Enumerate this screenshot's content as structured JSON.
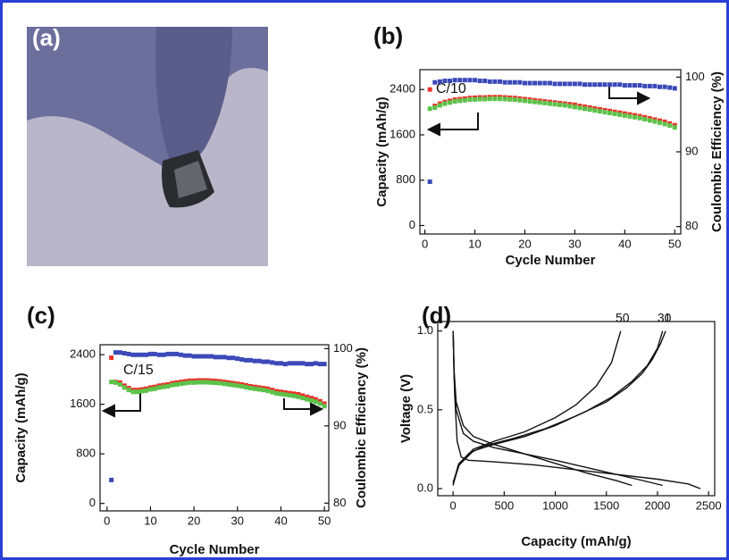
{
  "photo_panel": {
    "label": "(a)"
  },
  "chart_data": [
    {
      "type": "scatter",
      "title": "(b)",
      "xlabel": "Cycle Number",
      "ylabel": "Capacity (mAh/g)",
      "y2label": "Coulombic Efficiency (%)",
      "annotations": [
        "C/10"
      ],
      "x": [
        1,
        2,
        3,
        4,
        5,
        6,
        7,
        8,
        9,
        10,
        11,
        12,
        13,
        14,
        15,
        16,
        17,
        18,
        19,
        20,
        21,
        22,
        23,
        24,
        25,
        26,
        27,
        28,
        29,
        30,
        31,
        32,
        33,
        34,
        35,
        36,
        37,
        38,
        39,
        40,
        41,
        42,
        43,
        44,
        45,
        46,
        47,
        48,
        49,
        50
      ],
      "xlim": [
        -1,
        51.2
      ],
      "xticks": [
        0,
        10,
        20,
        30,
        40,
        50
      ],
      "ylim": [
        -150,
        2750
      ],
      "yticks": [
        0,
        800,
        1600,
        2400
      ],
      "y2lim": [
        79,
        101
      ],
      "y2ticks": [
        80,
        90,
        100
      ],
      "series": [
        {
          "color": "#e8342a",
          "values": [
            2400,
            2110,
            2150,
            2180,
            2200,
            2220,
            2230,
            2240,
            2250,
            2255,
            2260,
            2260,
            2265,
            2265,
            2265,
            2260,
            2255,
            2250,
            2240,
            2230,
            2220,
            2210,
            2200,
            2190,
            2180,
            2170,
            2160,
            2150,
            2140,
            2130,
            2110,
            2095,
            2080,
            2065,
            2050,
            2035,
            2020,
            2005,
            1990,
            1975,
            1960,
            1945,
            1930,
            1910,
            1890,
            1870,
            1850,
            1830,
            1800,
            1770
          ]
        },
        {
          "color": "#5cc24a",
          "values": [
            2060,
            2080,
            2120,
            2150,
            2170,
            2190,
            2200,
            2210,
            2220,
            2225,
            2230,
            2230,
            2235,
            2235,
            2235,
            2230,
            2225,
            2220,
            2210,
            2200,
            2190,
            2180,
            2170,
            2160,
            2150,
            2140,
            2130,
            2120,
            2105,
            2090,
            2075,
            2060,
            2045,
            2030,
            2015,
            2000,
            1985,
            1970,
            1955,
            1940,
            1925,
            1910,
            1895,
            1875,
            1855,
            1835,
            1815,
            1790,
            1765,
            1730
          ]
        },
        {
          "color": "#3a48b8",
          "axis": "y2",
          "values": [
            86,
            99.3,
            99.4,
            99.5,
            99.5,
            99.6,
            99.6,
            99.6,
            99.6,
            99.6,
            99.5,
            99.5,
            99.4,
            99.4,
            99.4,
            99.3,
            99.3,
            99.3,
            99.3,
            99.2,
            99.2,
            99.2,
            99.2,
            99.2,
            99.2,
            99.1,
            99.1,
            99.1,
            99.1,
            99.1,
            99.1,
            99.0,
            99.0,
            99.0,
            99.0,
            99.0,
            99.0,
            99.0,
            99.0,
            98.9,
            98.9,
            98.9,
            98.9,
            98.8,
            98.8,
            98.8,
            98.7,
            98.7,
            98.6,
            98.5
          ]
        }
      ]
    },
    {
      "type": "scatter",
      "title": "(c)",
      "xlabel": "Cycle Number",
      "ylabel": "Capacity (mAh/g)",
      "y2label": "Coulombic Efficiency (%)",
      "annotations": [
        "C/15"
      ],
      "x": [
        1,
        2,
        3,
        4,
        5,
        6,
        7,
        8,
        9,
        10,
        11,
        12,
        13,
        14,
        15,
        16,
        17,
        18,
        19,
        20,
        21,
        22,
        23,
        24,
        25,
        26,
        27,
        28,
        29,
        30,
        31,
        32,
        33,
        34,
        35,
        36,
        37,
        38,
        39,
        40,
        41,
        42,
        43,
        44,
        45,
        46,
        47,
        48,
        49,
        50
      ],
      "xlim": [
        -1.6,
        51
      ],
      "xticks": [
        0,
        10,
        20,
        30,
        40,
        50
      ],
      "ylim": [
        -120,
        2560
      ],
      "yticks": [
        0,
        800,
        1600,
        2400
      ],
      "y2lim": [
        79,
        100.5
      ],
      "y2ticks": [
        80,
        90,
        100
      ],
      "series": [
        {
          "color": "#e8342a",
          "values": [
            2350,
            1960,
            1950,
            1900,
            1860,
            1830,
            1830,
            1840,
            1850,
            1870,
            1880,
            1900,
            1910,
            1920,
            1940,
            1950,
            1960,
            1970,
            1980,
            1980,
            1985,
            1985,
            1985,
            1980,
            1975,
            1970,
            1960,
            1950,
            1940,
            1930,
            1920,
            1905,
            1890,
            1880,
            1870,
            1860,
            1850,
            1830,
            1810,
            1800,
            1790,
            1780,
            1770,
            1760,
            1740,
            1720,
            1700,
            1680,
            1650,
            1610
          ]
        },
        {
          "color": "#5cc24a",
          "values": [
            1960,
            1950,
            1920,
            1870,
            1830,
            1800,
            1800,
            1810,
            1820,
            1840,
            1850,
            1870,
            1880,
            1890,
            1910,
            1920,
            1930,
            1940,
            1950,
            1950,
            1955,
            1955,
            1955,
            1950,
            1945,
            1940,
            1930,
            1920,
            1910,
            1900,
            1890,
            1875,
            1860,
            1850,
            1840,
            1830,
            1815,
            1795,
            1775,
            1765,
            1755,
            1745,
            1735,
            1720,
            1700,
            1680,
            1660,
            1640,
            1610,
            1570
          ]
        },
        {
          "color": "#3a48b8",
          "axis": "y2",
          "values": [
            83,
            99.5,
            99.5,
            99.4,
            99.3,
            99.2,
            99.2,
            99.2,
            99.2,
            99.3,
            99.3,
            99.2,
            99.2,
            99.3,
            99.3,
            99.3,
            99.2,
            99.1,
            99.1,
            99.0,
            99.0,
            99.0,
            99.0,
            99.0,
            98.9,
            98.9,
            98.9,
            98.8,
            98.8,
            98.7,
            98.6,
            98.5,
            98.5,
            98.4,
            98.4,
            98.3,
            98.3,
            98.2,
            98.1,
            98.1,
            98.0,
            98.1,
            98.1,
            98.1,
            98.1,
            98.0,
            98.0,
            98.1,
            98.0,
            98.0
          ]
        }
      ]
    },
    {
      "type": "line",
      "title": "(d)",
      "xlabel": "Capacity (mAh/g)",
      "ylabel": "Voltage (V)",
      "xlim": [
        -150,
        2560
      ],
      "xticks": [
        0,
        500,
        1000,
        1500,
        2000,
        2500
      ],
      "ylim": [
        -0.045,
        1.06
      ],
      "yticks": [
        {
          "value": 0,
          "label": "0.0"
        },
        0.5,
        {
          "value": 1,
          "label": "1.0"
        }
      ],
      "series": [
        {
          "name": "1",
          "color": "#111111",
          "x": [
            0,
            15,
            40,
            80,
            150,
            400,
            800,
            1200,
            1600,
            2000,
            2300,
            2420,
            null,
            0,
            50,
            150,
            300,
            600,
            900,
            1200,
            1500,
            1700,
            1850,
            1950,
            2030,
            2080
          ],
          "values": [
            1.0,
            0.6,
            0.3,
            0.2,
            0.18,
            0.17,
            0.15,
            0.12,
            0.09,
            0.06,
            0.03,
            0.0,
            null,
            0.02,
            0.15,
            0.22,
            0.27,
            0.32,
            0.38,
            0.46,
            0.55,
            0.64,
            0.73,
            0.82,
            0.92,
            1.0
          ]
        },
        {
          "name": "30",
          "color": "#111111",
          "x": [
            0,
            10,
            30,
            100,
            200,
            400,
            700,
            1000,
            1400,
            1800,
            2050,
            null,
            0,
            60,
            200,
            400,
            700,
            1000,
            1300,
            1550,
            1750,
            1900,
            2000,
            2050
          ],
          "values": [
            1.0,
            0.7,
            0.5,
            0.35,
            0.3,
            0.26,
            0.22,
            0.18,
            0.12,
            0.06,
            0.02,
            null,
            0.03,
            0.15,
            0.24,
            0.28,
            0.33,
            0.4,
            0.49,
            0.58,
            0.68,
            0.78,
            0.89,
            1.0
          ]
        },
        {
          "name": "50",
          "color": "#111111",
          "x": [
            0,
            10,
            30,
            100,
            200,
            400,
            700,
            1000,
            1300,
            1600,
            1750,
            null,
            0,
            60,
            200,
            400,
            700,
            1000,
            1200,
            1400,
            1550,
            1640
          ],
          "values": [
            1.0,
            0.75,
            0.55,
            0.4,
            0.33,
            0.28,
            0.22,
            0.16,
            0.1,
            0.05,
            0.02,
            null,
            0.04,
            0.16,
            0.25,
            0.3,
            0.36,
            0.45,
            0.53,
            0.65,
            0.8,
            1.0
          ]
        }
      ]
    }
  ]
}
